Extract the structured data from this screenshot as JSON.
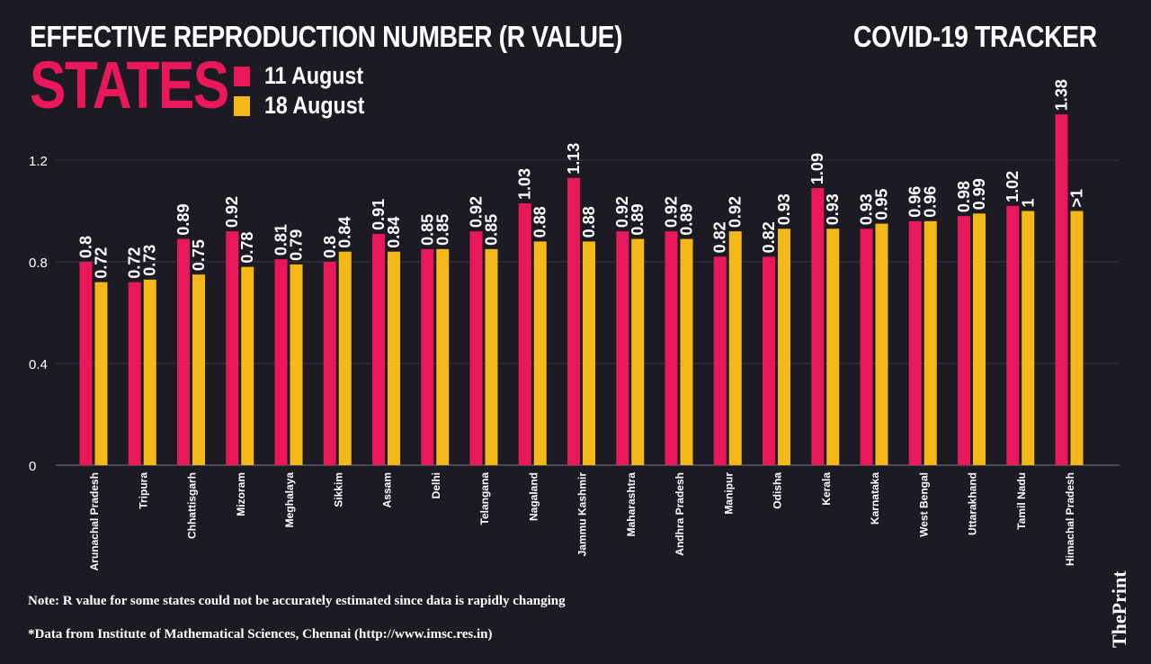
{
  "header": {
    "title": "EFFECTIVE REPRODUCTION NUMBER (R VALUE)",
    "tracker": "COVID-19 TRACKER",
    "section": "STATES"
  },
  "legend": [
    {
      "label": "11 August",
      "color": "#e8185a"
    },
    {
      "label": "18 August",
      "color": "#f5b819"
    }
  ],
  "chart_data": {
    "type": "bar",
    "title": "EFFECTIVE REPRODUCTION NUMBER (R VALUE)",
    "xlabel": "",
    "ylabel": "",
    "ylim": [
      0,
      1.2
    ],
    "yticks": [
      "0",
      "0.4",
      "0.8",
      "1.2"
    ],
    "ytick_values": [
      0,
      0.4,
      0.8,
      1.2
    ],
    "grid": true,
    "legend_position": "top-left",
    "categories": [
      "Arunachal Pradesh",
      "Tripura",
      "Chhattisgarh",
      "Mizoram",
      "Meghalaya",
      "Sikkim",
      "Assam",
      "Delhi",
      "Telangana",
      "Nagaland",
      "Jammu Kashmir",
      "Maharashtra",
      "Andhra Pradesh",
      "Manipur",
      "Odisha",
      "Kerala",
      "Karnataka",
      "West Bengal",
      "Uttarakhand",
      "Tamil Nadu",
      "Himachal Pradesh"
    ],
    "series": [
      {
        "name": "11 August",
        "color": "#e8185a",
        "values": [
          0.8,
          0.72,
          0.89,
          0.92,
          0.81,
          0.8,
          0.91,
          0.85,
          0.92,
          1.03,
          1.13,
          0.92,
          0.92,
          0.82,
          0.82,
          1.09,
          0.93,
          0.96,
          0.98,
          1.02,
          1.38
        ],
        "labels": [
          "0.8",
          "0.72",
          "0.89",
          "0.92",
          "0.81",
          "0.8",
          "0.91",
          "0.85",
          "0.92",
          "1.03",
          "1.13",
          "0.92",
          "0.92",
          "0.82",
          "0.82",
          "1.09",
          "0.93",
          "0.96",
          "0.98",
          "1.02",
          "1.38"
        ]
      },
      {
        "name": "18 August",
        "color": "#f5b819",
        "values": [
          0.72,
          0.73,
          0.75,
          0.78,
          0.79,
          0.84,
          0.84,
          0.85,
          0.85,
          0.88,
          0.88,
          0.89,
          0.89,
          0.92,
          0.93,
          0.93,
          0.95,
          0.96,
          0.99,
          1,
          1
        ],
        "labels": [
          "0.72",
          "0.73",
          "0.75",
          "0.78",
          "0.79",
          "0.84",
          "0.84",
          "0.85",
          "0.85",
          "0.88",
          "0.88",
          "0.89",
          "0.89",
          "0.92",
          "0.93",
          "0.93",
          "0.95",
          "0.96",
          "0.99",
          "1",
          ">1"
        ]
      }
    ]
  },
  "footer": {
    "note": "Note: R value for some states could not be accurately estimated since data is rapidly changing",
    "source": "*Data from Institute of Mathematical Sciences, Chennai (http://www.imsc.res.in)",
    "brand": "ThePrint"
  }
}
